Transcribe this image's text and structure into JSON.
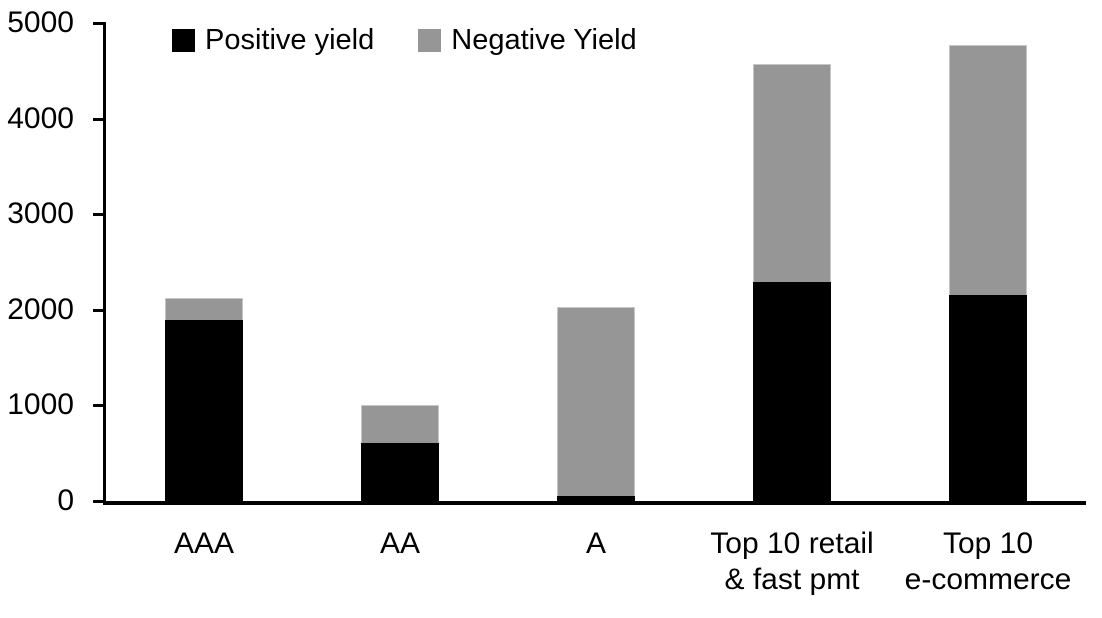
{
  "chart_data": {
    "type": "bar",
    "stacked": true,
    "title": "",
    "xlabel": "",
    "ylabel": "",
    "grid": false,
    "legend_position": "top-left-inside",
    "categories": [
      "AAA",
      "AA",
      "A",
      "Top 10 retail\n& fast pmt",
      "Top 10\ne-commerce"
    ],
    "series": [
      {
        "name": "Positive yield",
        "color": "#000000",
        "values": [
          1890,
          610,
          50,
          2290,
          2150
        ]
      },
      {
        "name": "Negative Yield",
        "color": "#969696",
        "values": [
          230,
          390,
          1980,
          2280,
          2620
        ]
      }
    ],
    "totals": [
      2120,
      1000,
      2030,
      4570,
      4770
    ],
    "ylim": [
      0,
      5000
    ],
    "yticks": [
      0,
      1000,
      2000,
      3000,
      4000,
      5000
    ],
    "y_tick_labels": [
      "0",
      "1000",
      "2000",
      "3000",
      "4000",
      "5000"
    ]
  },
  "colors": {
    "axis": "#000000",
    "background": "#ffffff",
    "positive_series": "#000000",
    "negative_series": "#969696"
  }
}
